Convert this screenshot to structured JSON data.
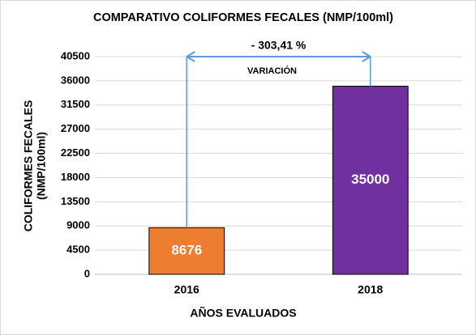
{
  "chart_data": {
    "type": "bar",
    "title": "COMPARATIVO COLIFORMES FECALES (NMP/100ml)",
    "y_label": [
      "COLIFORMES FECALES",
      "(NMP/100ml)"
    ],
    "x_label": "AÑOS EVALUADOS",
    "annotations": [
      "- 303,41 %",
      "VARIACIÓN"
    ],
    "categories": [
      "2016",
      "2018"
    ],
    "values": [
      8676,
      35000
    ],
    "colors": [
      "#ed7d31",
      "#7030a0"
    ],
    "ylim": [
      0,
      40500
    ],
    "yticks": [
      0,
      4500,
      9000,
      13500,
      18000,
      22500,
      27000,
      31500,
      36000,
      40500
    ],
    "grid": true
  }
}
